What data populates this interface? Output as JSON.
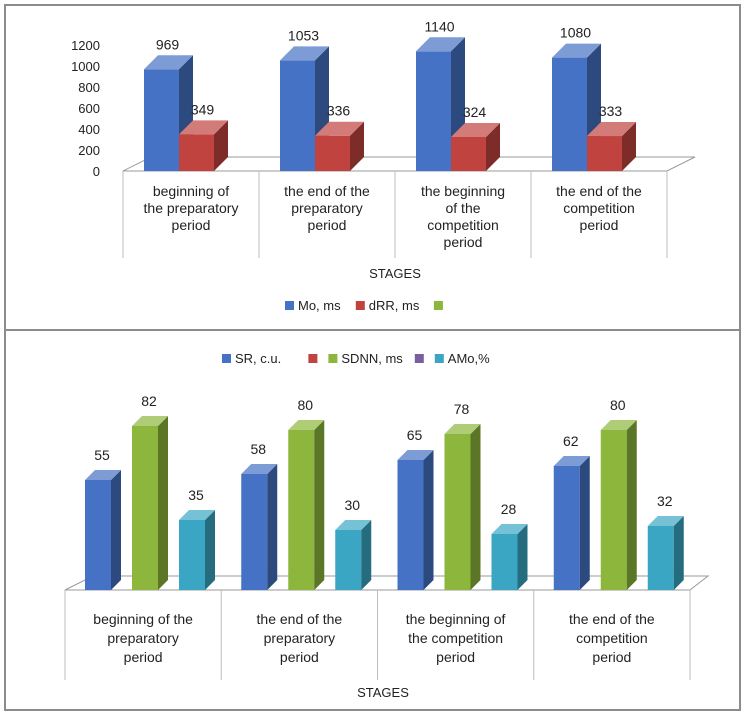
{
  "colors": {
    "blue": "#4572c4",
    "red": "#c0433f",
    "green": "#8db63c",
    "purple": "#7a5fa0",
    "teal": "#3aa6c4"
  },
  "chart_data": [
    {
      "type": "bar",
      "categories": [
        [
          "beginning of",
          "the preparatory",
          "period"
        ],
        [
          "the end of the",
          "preparatory",
          "period"
        ],
        [
          "the beginning",
          "of the",
          "competition",
          "period"
        ],
        [
          "the end of the",
          "competition",
          "period"
        ]
      ],
      "series": [
        {
          "name": "Mo, ms",
          "values": [
            969,
            1053,
            1140,
            1080
          ],
          "labels": [
            "969",
            "1053",
            "1140",
            "1080"
          ],
          "color": "#4572c4"
        },
        {
          "name": "dRR, ms",
          "values": [
            349,
            336,
            324,
            333
          ],
          "labels": [
            "349",
            "336",
            "324",
            "333"
          ],
          "color": "#c0433f"
        }
      ],
      "legend": [
        {
          "name": "Mo, ms",
          "color": "#4572c4"
        },
        {
          "name": "dRR, ms",
          "color": "#c0433f"
        },
        {
          "name": "",
          "color": "#8db63c"
        }
      ],
      "xlabel": "STAGES",
      "ylim": [
        0,
        1200
      ],
      "yticks": [
        "0",
        "200",
        "400",
        "600",
        "800",
        "1000",
        "1200"
      ],
      "grid": false,
      "legend_position": "bottom"
    },
    {
      "type": "bar",
      "categories": [
        [
          "beginning of the",
          "preparatory",
          "period"
        ],
        [
          "the end of the",
          "preparatory",
          "period"
        ],
        [
          "the beginning of",
          "the competition",
          "period"
        ],
        [
          "the end of the",
          "competition",
          "period"
        ]
      ],
      "series": [
        {
          "name": "SR, c.u.",
          "values": [
            55,
            58,
            65,
            62
          ],
          "labels": [
            "55",
            "58",
            "65",
            "62"
          ],
          "color": "#4572c4"
        },
        {
          "name": "SDNN, ms",
          "values": [
            82,
            80,
            78,
            80
          ],
          "labels": [
            "82",
            "80",
            "78",
            "80"
          ],
          "color": "#8db63c"
        },
        {
          "name": "AMo,%",
          "values": [
            35,
            30,
            28,
            32
          ],
          "labels": [
            "35",
            "30",
            "28",
            "32"
          ],
          "color": "#3aa6c4"
        }
      ],
      "legend": [
        {
          "name": "SR, c.u.",
          "color": "#4572c4"
        },
        {
          "name": "",
          "color": "#c0433f"
        },
        {
          "name": "SDNN, ms",
          "color": "#8db63c"
        },
        {
          "name": "",
          "color": "#7a5fa0"
        },
        {
          "name": "AMo,%",
          "color": "#3aa6c4"
        }
      ],
      "xlabel": "STAGES",
      "ylim": [
        0,
        100
      ],
      "grid": false,
      "legend_position": "top"
    }
  ]
}
